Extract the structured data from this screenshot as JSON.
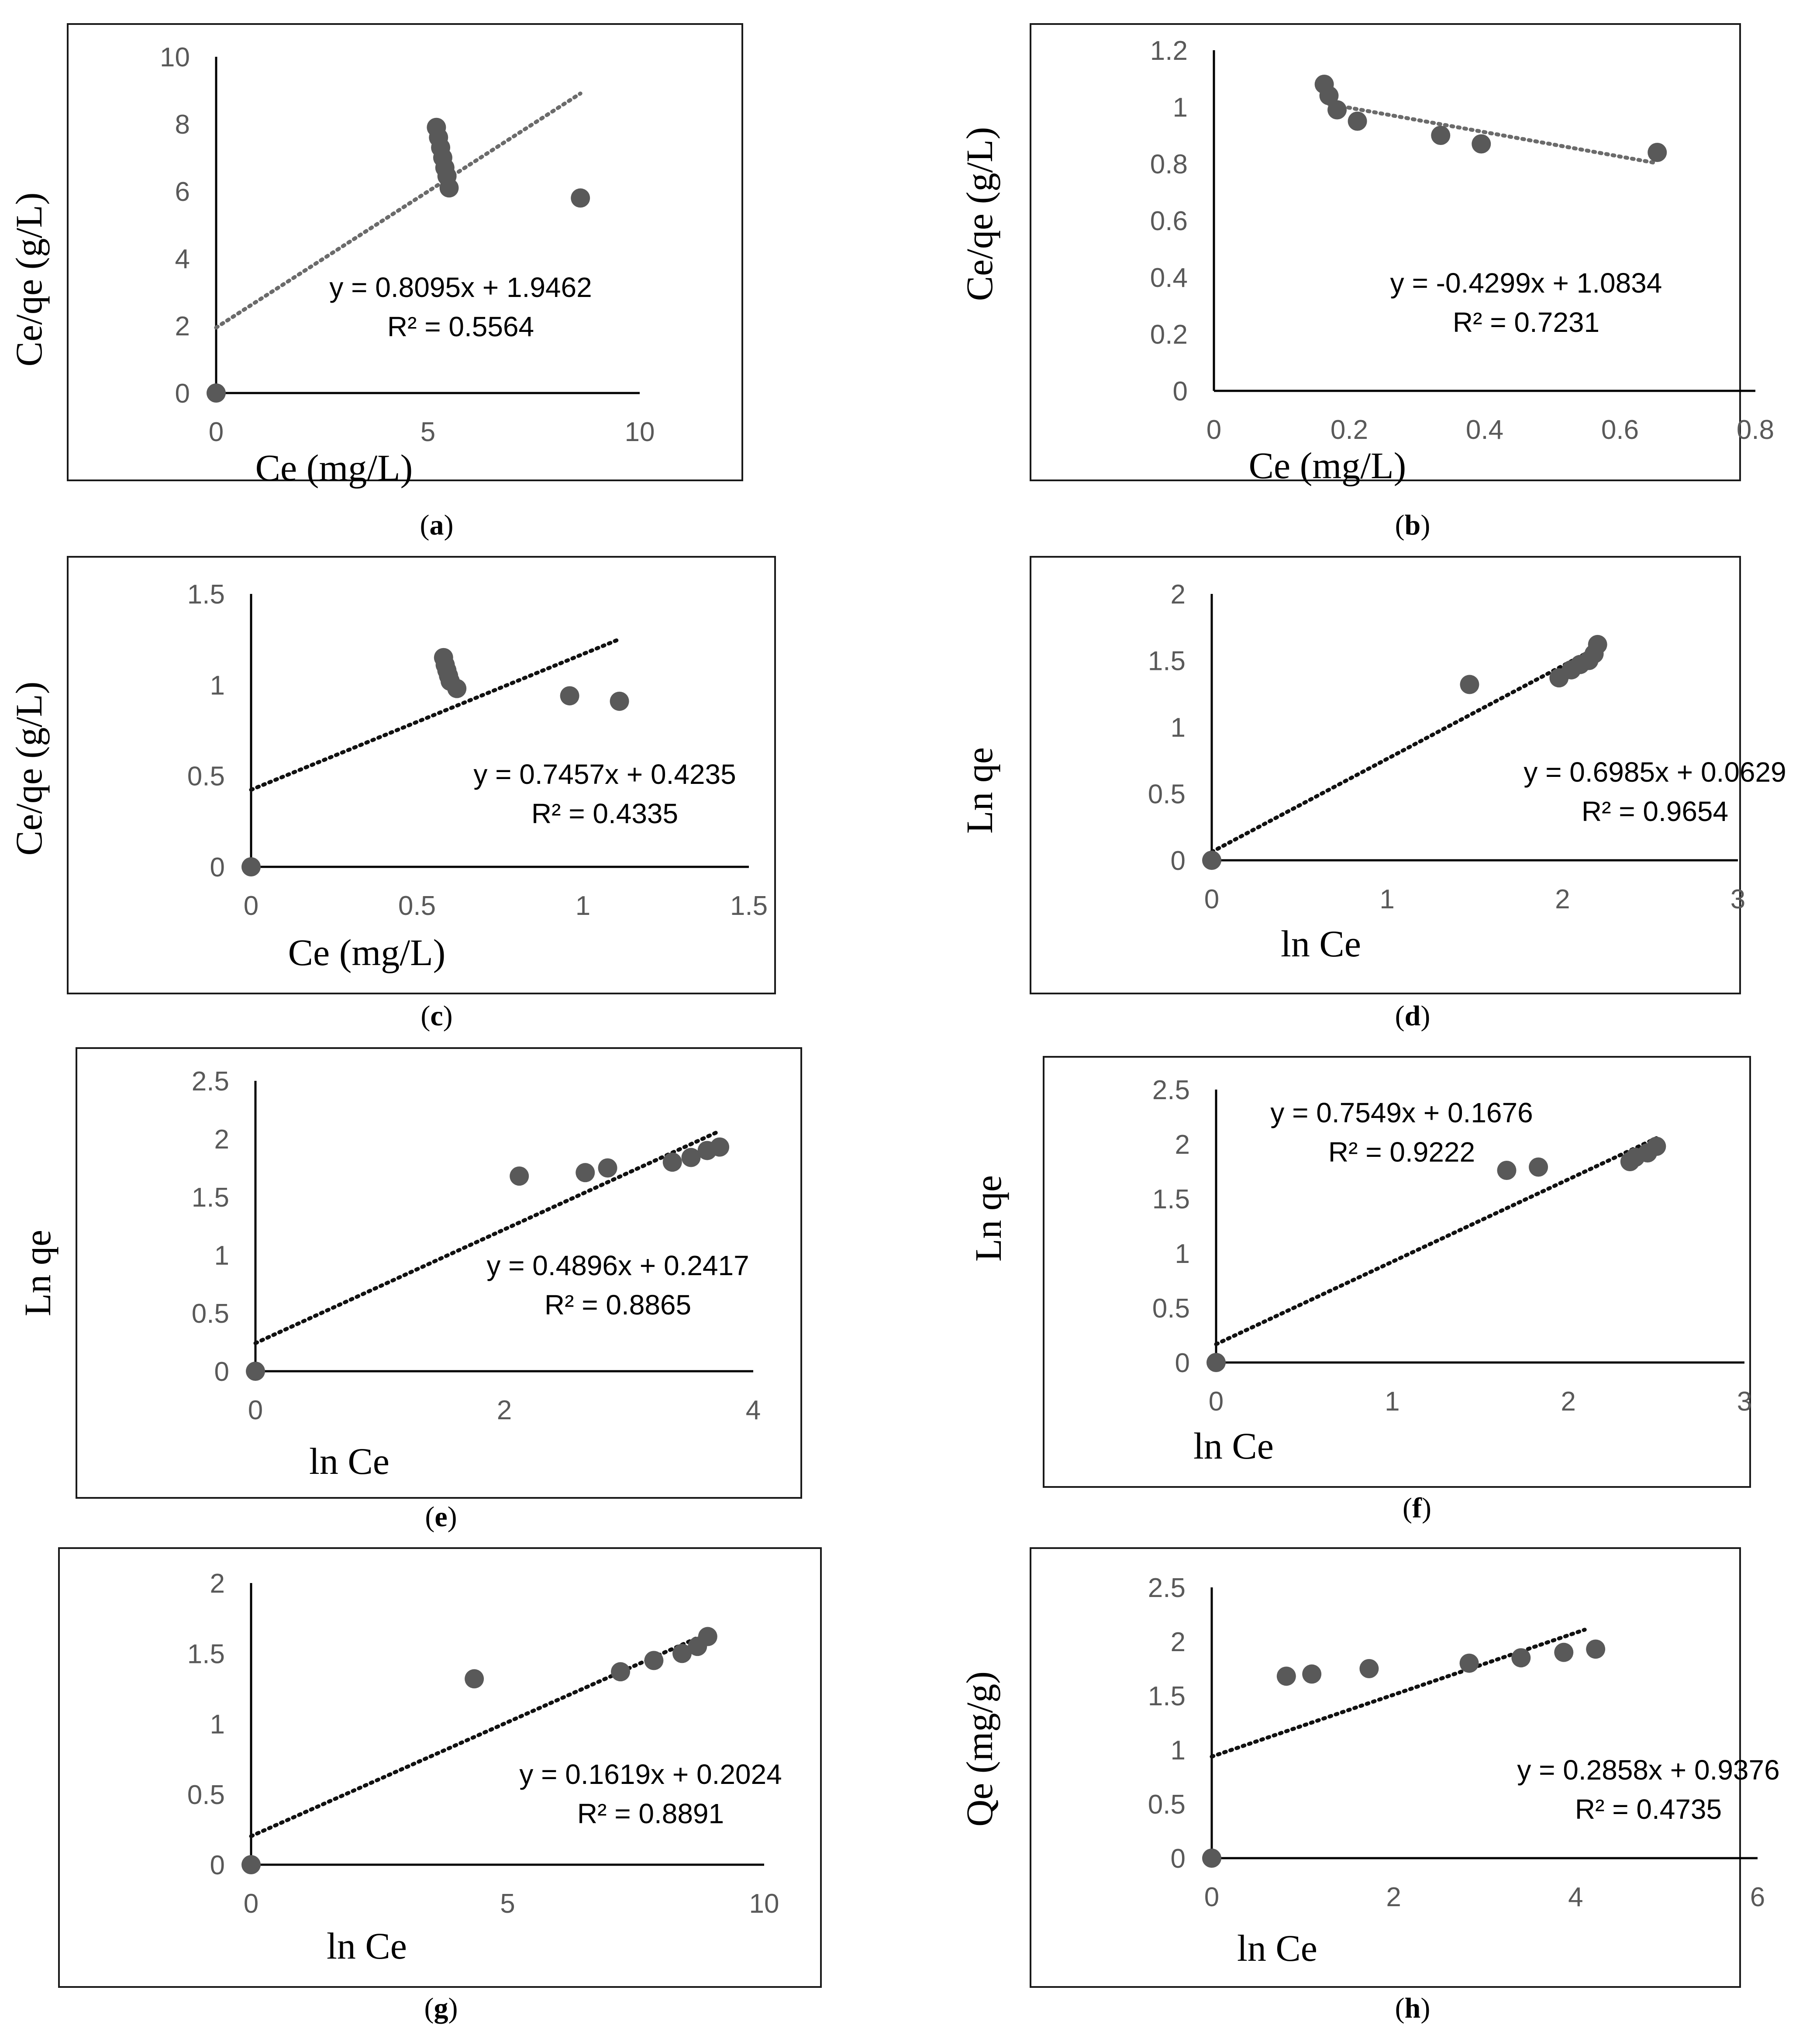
{
  "chart_data": [
    {
      "panel": "a",
      "caption_letter": "a",
      "type": "scatter",
      "xlabel": "Ce (mg/L)",
      "ylabel": "Ce/qe (g/L)",
      "xlim": [
        0,
        10
      ],
      "ylim": [
        0,
        10
      ],
      "xticks": [
        0,
        5,
        10
      ],
      "xtick_labels": [
        "0",
        "5",
        "10"
      ],
      "yticks": [
        0,
        2,
        4,
        6,
        8,
        10
      ],
      "ytick_labels": [
        "0",
        "2",
        "4",
        "6",
        "8",
        "10"
      ],
      "points": [
        [
          0,
          0
        ],
        [
          5.2,
          7.9
        ],
        [
          5.25,
          7.6
        ],
        [
          5.3,
          7.3
        ],
        [
          5.35,
          7.0
        ],
        [
          5.4,
          6.7
        ],
        [
          5.45,
          6.45
        ],
        [
          5.5,
          6.1
        ],
        [
          8.6,
          5.8
        ]
      ],
      "trendline": {
        "slope": 0.8095,
        "intercept": 1.9462,
        "x_range": [
          0,
          8.6
        ],
        "style": "dotted"
      },
      "equation": "y = 0.8095x + 1.9462",
      "r2": "R² = 0.5564"
    },
    {
      "panel": "b",
      "caption_letter": "b",
      "type": "scatter",
      "xlabel": "Ce (mg/L)",
      "ylabel": "Ce/qe (g/L)",
      "xlim": [
        0,
        0.8
      ],
      "ylim": [
        0,
        1.2
      ],
      "xticks": [
        0,
        0.2,
        0.4,
        0.6,
        0.8
      ],
      "xtick_labels": [
        "0",
        "0.2",
        "0.4",
        "0.6",
        "0.8"
      ],
      "yticks": [
        0,
        0.2,
        0.4,
        0.6,
        0.8,
        1.0,
        1.2
      ],
      "ytick_labels": [
        "0",
        "0.2",
        "0.4",
        "0.6",
        "0.8",
        "1",
        "1.2"
      ],
      "points": [
        [
          0.163,
          1.08
        ],
        [
          0.17,
          1.04
        ],
        [
          0.182,
          0.99
        ],
        [
          0.212,
          0.95
        ],
        [
          0.335,
          0.9
        ],
        [
          0.395,
          0.87
        ],
        [
          0.655,
          0.84
        ]
      ],
      "trendline": {
        "slope": -0.4299,
        "intercept": 1.0834,
        "x_range": [
          0.17,
          0.655
        ],
        "style": "dotted"
      },
      "equation": "y = -0.4299x + 1.0834",
      "r2": "R² = 0.7231"
    },
    {
      "panel": "c",
      "caption_letter": "c",
      "type": "scatter",
      "xlabel": "Ce (mg/L)",
      "ylabel": "Ce/qe (g/L)",
      "xlim": [
        0,
        1.5
      ],
      "ylim": [
        0,
        1.5
      ],
      "xticks": [
        0,
        0.5,
        1,
        1.5
      ],
      "xtick_labels": [
        "0",
        "0.5",
        "1",
        "1.5"
      ],
      "yticks": [
        0,
        0.5,
        1,
        1.5
      ],
      "ytick_labels": [
        "0",
        "0.5",
        "1",
        "1.5"
      ],
      "points": [
        [
          0,
          0
        ],
        [
          0.58,
          1.15
        ],
        [
          0.585,
          1.11
        ],
        [
          0.59,
          1.08
        ],
        [
          0.595,
          1.05
        ],
        [
          0.6,
          1.02
        ],
        [
          0.62,
          0.98
        ],
        [
          0.96,
          0.94
        ],
        [
          1.11,
          0.91
        ]
      ],
      "trendline": {
        "slope": 0.7457,
        "intercept": 0.4235,
        "x_range": [
          0,
          1.11
        ],
        "style": "dotted"
      },
      "equation": "y = 0.7457x + 0.4235",
      "r2": "R² = 0.4335"
    },
    {
      "panel": "d",
      "caption_letter": "d",
      "type": "scatter",
      "xlabel": "ln Ce",
      "ylabel": "Ln qe",
      "xlim": [
        0,
        3
      ],
      "ylim": [
        0,
        2
      ],
      "xticks": [
        0,
        1,
        2,
        3
      ],
      "xtick_labels": [
        "0",
        "1",
        "2",
        "3"
      ],
      "yticks": [
        0,
        0.5,
        1,
        1.5,
        2
      ],
      "ytick_labels": [
        "0",
        "0.5",
        "1",
        "1.5",
        "2"
      ],
      "points": [
        [
          0,
          0
        ],
        [
          1.47,
          1.32
        ],
        [
          1.98,
          1.37
        ],
        [
          2.05,
          1.43
        ],
        [
          2.1,
          1.47
        ],
        [
          2.15,
          1.5
        ],
        [
          2.18,
          1.55
        ],
        [
          2.2,
          1.62
        ]
      ],
      "trendline": {
        "slope": 0.6985,
        "intercept": 0.0629,
        "x_range": [
          0,
          2.2
        ],
        "style": "dotted"
      },
      "equation": "y = 0.6985x + 0.0629",
      "r2": "R² = 0.9654"
    },
    {
      "panel": "e",
      "caption_letter": "e",
      "type": "scatter",
      "xlabel": "ln Ce",
      "ylabel": "Ln qe",
      "xlim": [
        0,
        4
      ],
      "ylim": [
        0,
        2.5
      ],
      "xticks": [
        0,
        2,
        4
      ],
      "xtick_labels": [
        "0",
        "2",
        "4"
      ],
      "yticks": [
        0,
        0.5,
        1,
        1.5,
        2,
        2.5
      ],
      "ytick_labels": [
        "0",
        "0.5",
        "1",
        "1.5",
        "2",
        "2.5"
      ],
      "points": [
        [
          0,
          0
        ],
        [
          2.12,
          1.68
        ],
        [
          2.65,
          1.71
        ],
        [
          2.83,
          1.75
        ],
        [
          3.35,
          1.8
        ],
        [
          3.5,
          1.84
        ],
        [
          3.63,
          1.9
        ],
        [
          3.73,
          1.93
        ]
      ],
      "trendline": {
        "slope": 0.4896,
        "intercept": 0.2417,
        "x_range": [
          0,
          3.73
        ],
        "style": "dotted"
      },
      "equation": "y = 0.4896x + 0.2417",
      "r2": "R² = 0.8865"
    },
    {
      "panel": "f",
      "caption_letter": "f",
      "type": "scatter",
      "xlabel": "ln Ce",
      "ylabel": "Ln qe",
      "xlim": [
        0,
        3
      ],
      "ylim": [
        0,
        2.5
      ],
      "xticks": [
        0,
        1,
        2,
        3
      ],
      "xtick_labels": [
        "0",
        "1",
        "2",
        "3"
      ],
      "yticks": [
        0,
        0.5,
        1,
        1.5,
        2,
        2.5
      ],
      "ytick_labels": [
        "0",
        "0.5",
        "1",
        "1.5",
        "2",
        "2.5"
      ],
      "points": [
        [
          0,
          0
        ],
        [
          1.65,
          1.76
        ],
        [
          1.83,
          1.79
        ],
        [
          2.35,
          1.84
        ],
        [
          2.38,
          1.88
        ],
        [
          2.45,
          1.92
        ],
        [
          2.5,
          1.98
        ]
      ],
      "trendline": {
        "slope": 0.7549,
        "intercept": 0.1676,
        "x_range": [
          0,
          2.5
        ],
        "style": "dotted"
      },
      "equation": "y = 0.7549x + 0.1676",
      "r2": "R² = 0.9222"
    },
    {
      "panel": "g",
      "caption_letter": "g",
      "type": "scatter",
      "xlabel": "ln Ce",
      "ylabel": "",
      "xlim": [
        0,
        10
      ],
      "ylim": [
        0,
        2
      ],
      "xticks": [
        0,
        5,
        10
      ],
      "xtick_labels": [
        "0",
        "5",
        "10"
      ],
      "yticks": [
        0,
        0.5,
        1,
        1.5,
        2
      ],
      "ytick_labels": [
        "0",
        "0.5",
        "1",
        "1.5",
        "2"
      ],
      "points": [
        [
          0,
          0
        ],
        [
          4.35,
          1.32
        ],
        [
          7.2,
          1.37
        ],
        [
          7.85,
          1.45
        ],
        [
          8.4,
          1.5
        ],
        [
          8.7,
          1.55
        ],
        [
          8.9,
          1.62
        ]
      ],
      "trendline": {
        "slope": 0.1619,
        "intercept": 0.2024,
        "x_range": [
          0,
          8.9
        ],
        "style": "dotted"
      },
      "equation": "y = 0.1619x + 0.2024",
      "r2": "R² = 0.8891"
    },
    {
      "panel": "h",
      "caption_letter": "h",
      "type": "scatter",
      "xlabel": "ln Ce",
      "ylabel": "Qe (mg/g)",
      "xlim": [
        0,
        6
      ],
      "ylim": [
        0,
        2.5
      ],
      "xticks": [
        0,
        2,
        4,
        6
      ],
      "xtick_labels": [
        "0",
        "2",
        "4",
        "6"
      ],
      "yticks": [
        0,
        0.5,
        1,
        1.5,
        2,
        2.5
      ],
      "ytick_labels": [
        "0",
        "0.5",
        "1",
        "1.5",
        "2",
        "2.5"
      ],
      "points": [
        [
          0,
          0
        ],
        [
          0.82,
          1.68
        ],
        [
          1.1,
          1.7
        ],
        [
          1.73,
          1.75
        ],
        [
          2.83,
          1.8
        ],
        [
          3.4,
          1.85
        ],
        [
          3.87,
          1.9
        ],
        [
          4.22,
          1.93
        ]
      ],
      "trendline": {
        "slope": 0.2858,
        "intercept": 0.9376,
        "x_range": [
          0,
          4.1
        ],
        "style": "dotted"
      },
      "equation": "y = 0.2858x + 0.9376",
      "r2": "R² = 0.4735"
    }
  ]
}
